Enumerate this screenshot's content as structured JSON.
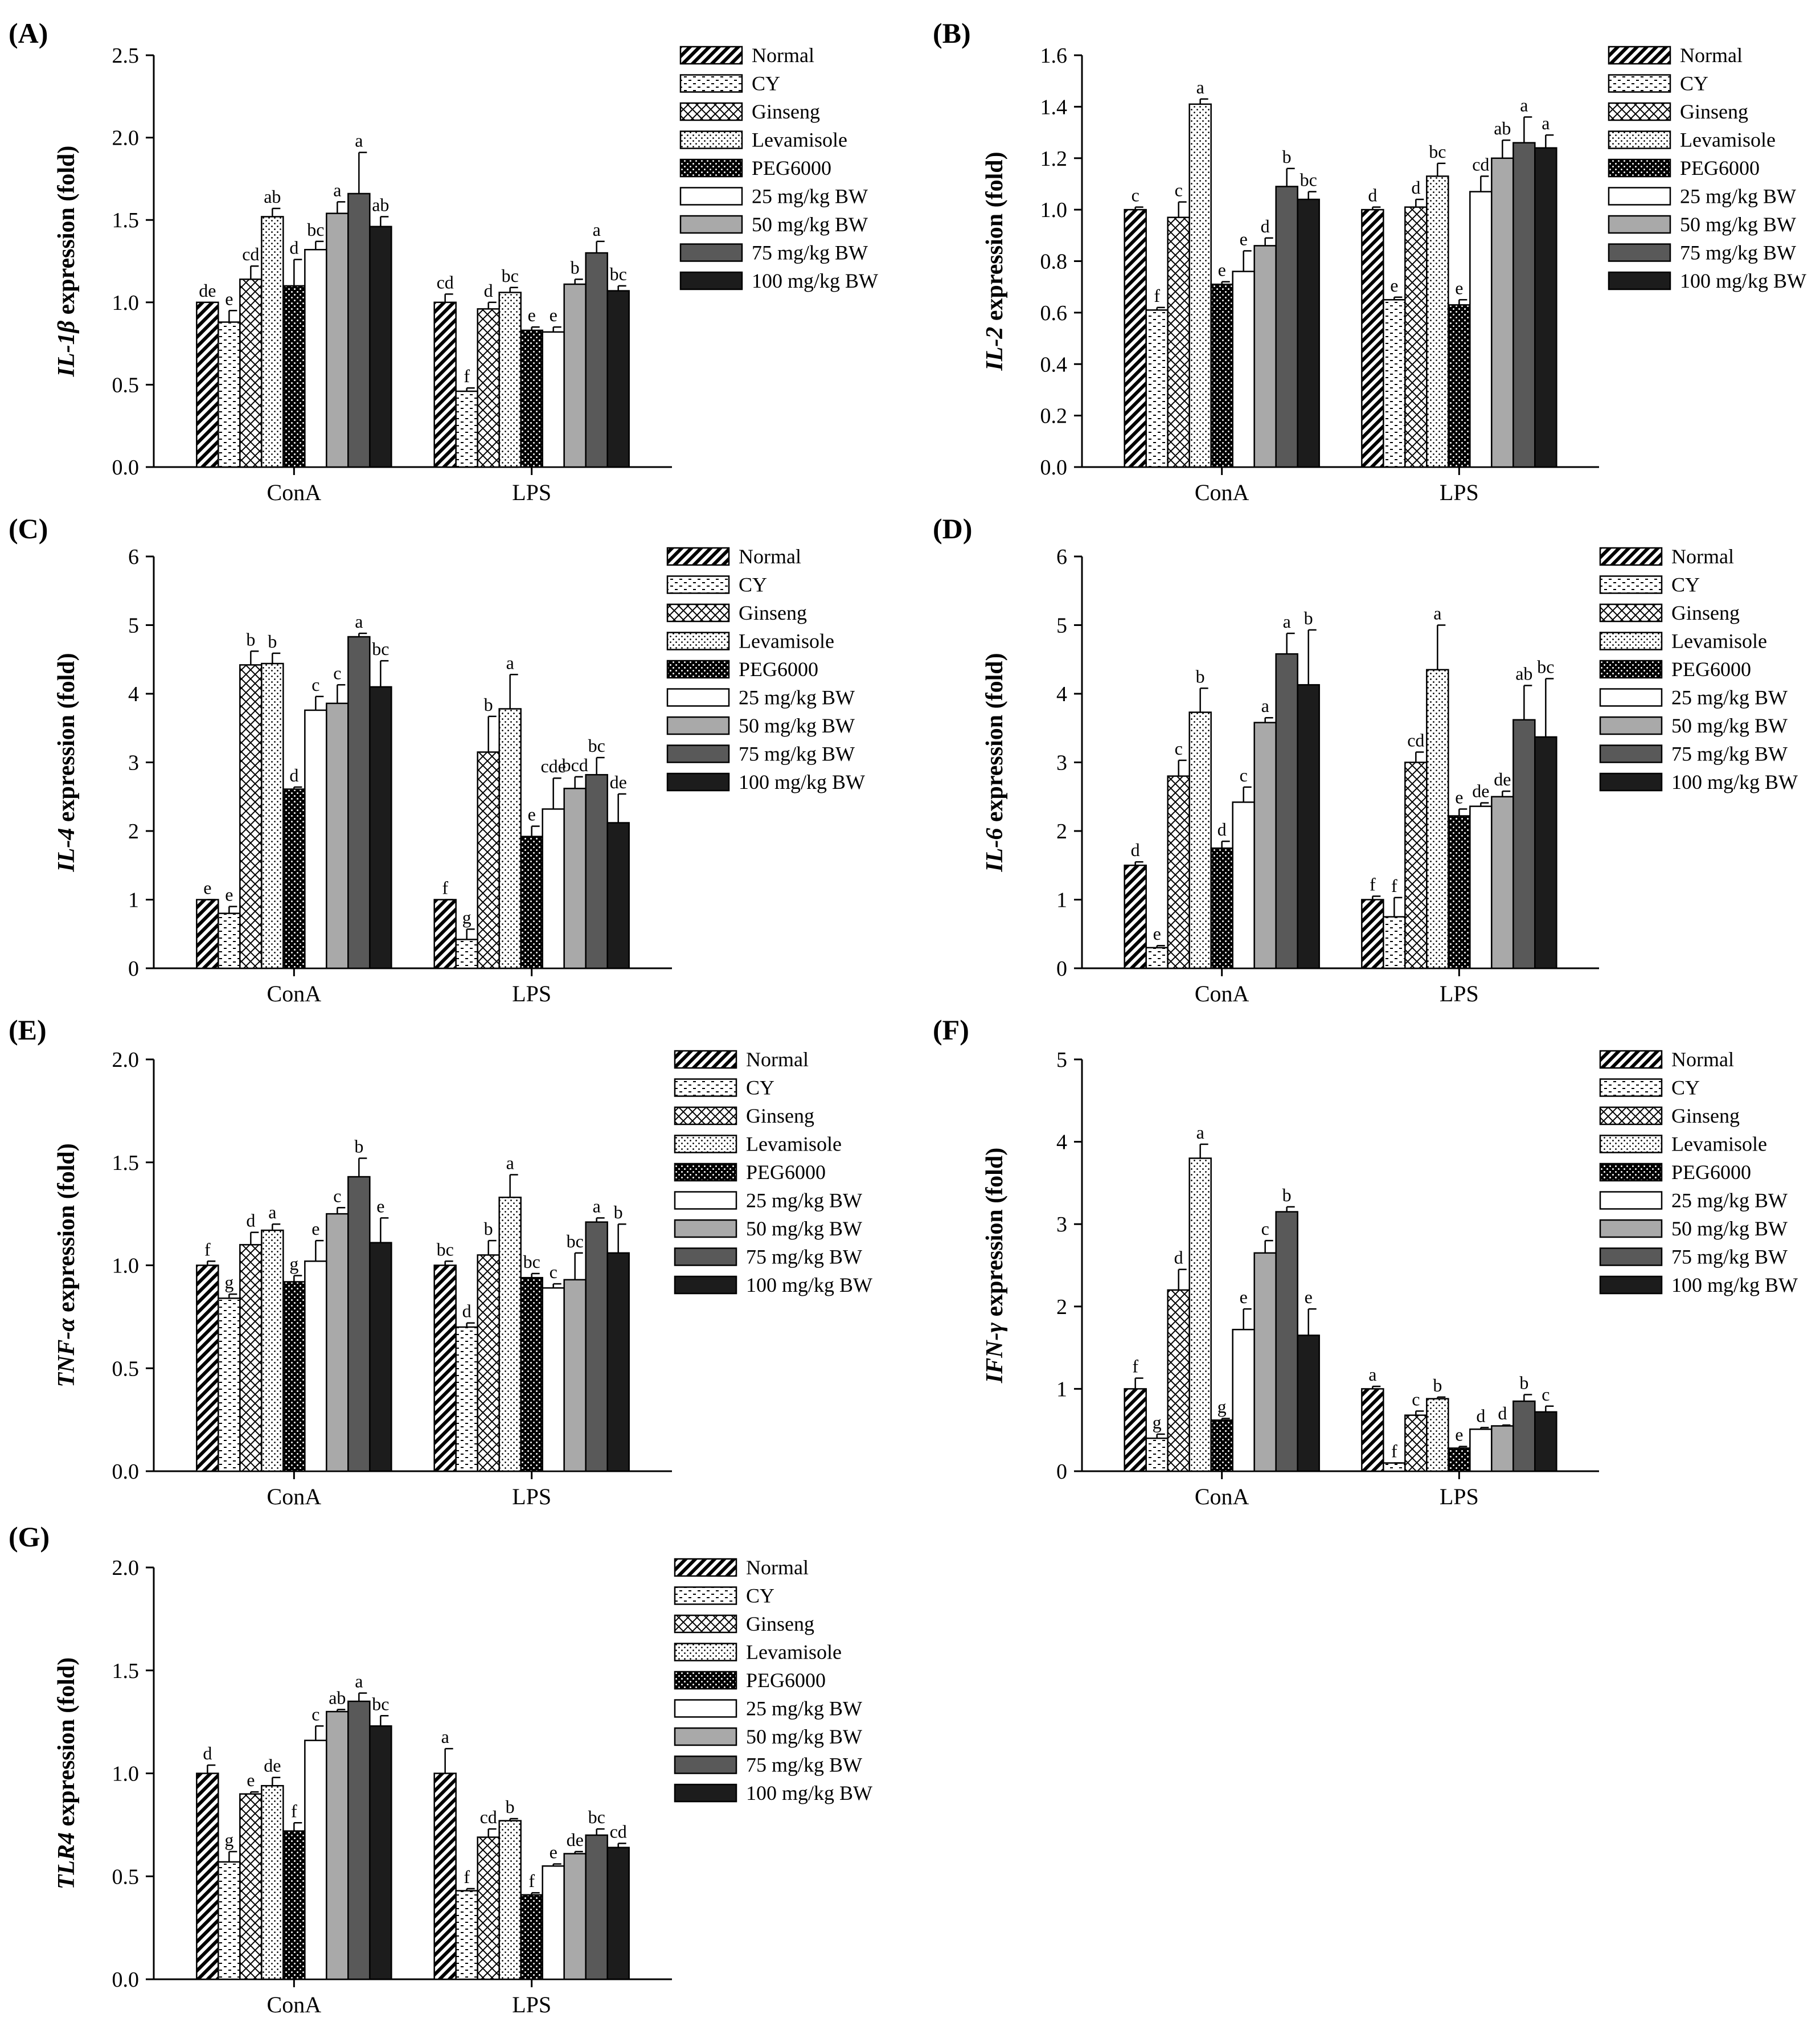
{
  "legend": [
    "Normal",
    "CY",
    "Ginseng",
    "Levamisole",
    "PEG6000",
    "25 mg/kg BW",
    "50 mg/kg BW",
    "75 mg/kg BW",
    "100 mg/kg BW"
  ],
  "chart_data": [
    {
      "panel": "(A)",
      "type": "bar",
      "ylabel_gene": "IL-1β",
      "ylabel_rest": " expression (fold)",
      "ylim": [
        0,
        2.5
      ],
      "yticks": [
        "0.0",
        "0.5",
        "1.0",
        "1.5",
        "2.0",
        "2.5"
      ],
      "categories": [
        "ConA",
        "LPS"
      ],
      "series": [
        {
          "name": "Normal",
          "values": [
            1.0,
            1.0
          ],
          "errors": [
            0.0,
            0.05
          ],
          "letters": [
            "de",
            "cd"
          ]
        },
        {
          "name": "CY",
          "values": [
            0.88,
            0.46
          ],
          "errors": [
            0.07,
            0.02
          ],
          "letters": [
            "e",
            "f"
          ]
        },
        {
          "name": "Ginseng",
          "values": [
            1.14,
            0.96
          ],
          "errors": [
            0.08,
            0.04
          ],
          "letters": [
            "cd",
            "d"
          ]
        },
        {
          "name": "Levamisole",
          "values": [
            1.52,
            1.06
          ],
          "errors": [
            0.05,
            0.03
          ],
          "letters": [
            "ab",
            "bc"
          ]
        },
        {
          "name": "PEG6000",
          "values": [
            1.1,
            0.83
          ],
          "errors": [
            0.16,
            0.02
          ],
          "letters": [
            "d",
            "e"
          ]
        },
        {
          "name": "25 mg/kg BW",
          "values": [
            1.32,
            0.82
          ],
          "errors": [
            0.05,
            0.03
          ],
          "letters": [
            "bc",
            "e"
          ]
        },
        {
          "name": "50 mg/kg BW",
          "values": [
            1.54,
            1.11
          ],
          "errors": [
            0.07,
            0.03
          ],
          "letters": [
            "a",
            "b"
          ]
        },
        {
          "name": "75 mg/kg BW",
          "values": [
            1.66,
            1.3
          ],
          "errors": [
            0.25,
            0.07
          ],
          "letters": [
            "a",
            "a"
          ]
        },
        {
          "name": "100 mg/kg BW",
          "values": [
            1.46,
            1.07
          ],
          "errors": [
            0.06,
            0.03
          ],
          "letters": [
            "ab",
            "bc"
          ]
        }
      ]
    },
    {
      "panel": "(B)",
      "type": "bar",
      "ylabel_gene": "IL-2",
      "ylabel_rest": " expression (fold)",
      "ylim": [
        0,
        1.6
      ],
      "yticks": [
        "0.0",
        "0.2",
        "0.4",
        "0.6",
        "0.8",
        "1.0",
        "1.2",
        "1.4",
        "1.6"
      ],
      "categories": [
        "ConA",
        "LPS"
      ],
      "series": [
        {
          "name": "Normal",
          "values": [
            1.0,
            1.0
          ],
          "errors": [
            0.01,
            0.01
          ],
          "letters": [
            "c",
            "d"
          ]
        },
        {
          "name": "CY",
          "values": [
            0.61,
            0.65
          ],
          "errors": [
            0.01,
            0.01
          ],
          "letters": [
            "f",
            "e"
          ]
        },
        {
          "name": "Ginseng",
          "values": [
            0.97,
            1.01
          ],
          "errors": [
            0.06,
            0.03
          ],
          "letters": [
            "c",
            "d"
          ]
        },
        {
          "name": "Levamisole",
          "values": [
            1.41,
            1.13
          ],
          "errors": [
            0.02,
            0.05
          ],
          "letters": [
            "a",
            "bc"
          ]
        },
        {
          "name": "PEG6000",
          "values": [
            0.71,
            0.63
          ],
          "errors": [
            0.01,
            0.02
          ],
          "letters": [
            "e",
            "e"
          ]
        },
        {
          "name": "25 mg/kg BW",
          "values": [
            0.76,
            1.07
          ],
          "errors": [
            0.08,
            0.06
          ],
          "letters": [
            "e",
            "cd"
          ]
        },
        {
          "name": "50 mg/kg BW",
          "values": [
            0.86,
            1.2
          ],
          "errors": [
            0.03,
            0.07
          ],
          "letters": [
            "d",
            "ab"
          ]
        },
        {
          "name": "75 mg/kg BW",
          "values": [
            1.09,
            1.26
          ],
          "errors": [
            0.07,
            0.1
          ],
          "letters": [
            "b",
            "a"
          ]
        },
        {
          "name": "100 mg/kg BW",
          "values": [
            1.04,
            1.24
          ],
          "errors": [
            0.03,
            0.05
          ],
          "letters": [
            "bc",
            "a"
          ]
        }
      ]
    },
    {
      "panel": "(C)",
      "type": "bar",
      "ylabel_gene": "IL-4",
      "ylabel_rest": " expression (fold)",
      "ylim": [
        0,
        6
      ],
      "yticks": [
        "0",
        "1",
        "2",
        "3",
        "4",
        "5",
        "6"
      ],
      "categories": [
        "ConA",
        "LPS"
      ],
      "series": [
        {
          "name": "Normal",
          "values": [
            1.0,
            1.0
          ],
          "errors": [
            0.0,
            0.0
          ],
          "letters": [
            "e",
            "f"
          ]
        },
        {
          "name": "CY",
          "values": [
            0.8,
            0.42
          ],
          "errors": [
            0.1,
            0.15
          ],
          "letters": [
            "e",
            "g"
          ]
        },
        {
          "name": "Ginseng",
          "values": [
            4.42,
            3.15
          ],
          "errors": [
            0.2,
            0.52
          ],
          "letters": [
            "b",
            "b"
          ]
        },
        {
          "name": "Levamisole",
          "values": [
            4.44,
            3.78
          ],
          "errors": [
            0.15,
            0.5
          ],
          "letters": [
            "b",
            "a"
          ]
        },
        {
          "name": "PEG6000",
          "values": [
            2.61,
            1.92
          ],
          "errors": [
            0.03,
            0.15
          ],
          "letters": [
            "d",
            "e"
          ]
        },
        {
          "name": "25 mg/kg BW",
          "values": [
            3.76,
            2.32
          ],
          "errors": [
            0.2,
            0.45
          ],
          "letters": [
            "c",
            "cde"
          ]
        },
        {
          "name": "50 mg/kg BW",
          "values": [
            3.86,
            2.62
          ],
          "errors": [
            0.27,
            0.17
          ],
          "letters": [
            "c",
            "bcd"
          ]
        },
        {
          "name": "75 mg/kg BW",
          "values": [
            4.83,
            2.82
          ],
          "errors": [
            0.05,
            0.25
          ],
          "letters": [
            "a",
            "bc"
          ]
        },
        {
          "name": "100 mg/kg BW",
          "values": [
            4.1,
            2.12
          ],
          "errors": [
            0.38,
            0.42
          ],
          "letters": [
            "bc",
            "de"
          ]
        }
      ]
    },
    {
      "panel": "(D)",
      "type": "bar",
      "ylabel_gene": "IL-6",
      "ylabel_rest": " expression (fold)",
      "ylim": [
        0,
        6
      ],
      "yticks": [
        "0",
        "1",
        "2",
        "3",
        "4",
        "5",
        "6"
      ],
      "categories": [
        "ConA",
        "LPS"
      ],
      "series": [
        {
          "name": "Normal",
          "values": [
            1.5,
            1.0
          ],
          "errors": [
            0.05,
            0.05
          ],
          "letters": [
            "d",
            "f"
          ]
        },
        {
          "name": "CY",
          "values": [
            0.3,
            0.75
          ],
          "errors": [
            0.03,
            0.28
          ],
          "letters": [
            "e",
            "f"
          ]
        },
        {
          "name": "Ginseng",
          "values": [
            2.8,
            3.0
          ],
          "errors": [
            0.23,
            0.15
          ],
          "letters": [
            "c",
            "cd"
          ]
        },
        {
          "name": "Levamisole",
          "values": [
            3.73,
            4.35
          ],
          "errors": [
            0.35,
            0.65
          ],
          "letters": [
            "b",
            "a"
          ]
        },
        {
          "name": "PEG6000",
          "values": [
            1.75,
            2.22
          ],
          "errors": [
            0.1,
            0.1
          ],
          "letters": [
            "d",
            "e"
          ]
        },
        {
          "name": "25 mg/kg BW",
          "values": [
            2.42,
            2.36
          ],
          "errors": [
            0.22,
            0.05
          ],
          "letters": [
            "c",
            "de"
          ]
        },
        {
          "name": "50 mg/kg BW",
          "values": [
            3.58,
            2.5
          ],
          "errors": [
            0.07,
            0.08
          ],
          "letters": [
            "a",
            "de"
          ]
        },
        {
          "name": "75 mg/kg BW",
          "values": [
            4.58,
            3.62
          ],
          "errors": [
            0.3,
            0.5
          ],
          "letters": [
            "a",
            "ab"
          ]
        },
        {
          "name": "100 mg/kg BW",
          "values": [
            4.13,
            3.37
          ],
          "errors": [
            0.8,
            0.85
          ],
          "letters": [
            "b",
            "bc"
          ]
        }
      ]
    },
    {
      "panel": "(E)",
      "type": "bar",
      "ylabel_gene": "TNF-α",
      "ylabel_rest": " expression (fold)",
      "ylim": [
        0,
        2.0
      ],
      "yticks": [
        "0.0",
        "0.5",
        "1.0",
        "1.5",
        "2.0"
      ],
      "categories": [
        "ConA",
        "LPS"
      ],
      "series": [
        {
          "name": "Normal",
          "values": [
            1.0,
            1.0
          ],
          "errors": [
            0.02,
            0.02
          ],
          "letters": [
            "f",
            "bc"
          ]
        },
        {
          "name": "CY",
          "values": [
            0.84,
            0.7
          ],
          "errors": [
            0.02,
            0.02
          ],
          "letters": [
            "g",
            "d"
          ]
        },
        {
          "name": "Ginseng",
          "values": [
            1.1,
            1.05
          ],
          "errors": [
            0.06,
            0.07
          ],
          "letters": [
            "d",
            "b"
          ]
        },
        {
          "name": "Levamisole",
          "values": [
            1.17,
            1.33
          ],
          "errors": [
            0.03,
            0.11
          ],
          "letters": [
            "a",
            "a"
          ]
        },
        {
          "name": "PEG6000",
          "values": [
            0.92,
            0.94
          ],
          "errors": [
            0.03,
            0.02
          ],
          "letters": [
            "g",
            "bc"
          ]
        },
        {
          "name": "25 mg/kg BW",
          "values": [
            1.02,
            0.89
          ],
          "errors": [
            0.1,
            0.02
          ],
          "letters": [
            "e",
            "c"
          ]
        },
        {
          "name": "50 mg/kg BW",
          "values": [
            1.25,
            0.93
          ],
          "errors": [
            0.03,
            0.13
          ],
          "letters": [
            "c",
            "bc"
          ]
        },
        {
          "name": "75 mg/kg BW",
          "values": [
            1.43,
            1.21
          ],
          "errors": [
            0.09,
            0.02
          ],
          "letters": [
            "b",
            "a"
          ]
        },
        {
          "name": "100 mg/kg BW",
          "values": [
            1.11,
            1.06
          ],
          "errors": [
            0.12,
            0.14
          ],
          "letters": [
            "e",
            "b"
          ]
        }
      ]
    },
    {
      "panel": "(F)",
      "type": "bar",
      "ylabel_gene": "IFN-γ",
      "ylabel_rest": " expression (fold)",
      "ylim": [
        0,
        5
      ],
      "yticks": [
        "0",
        "1",
        "2",
        "3",
        "4",
        "5"
      ],
      "categories": [
        "ConA",
        "LPS"
      ],
      "series": [
        {
          "name": "Normal",
          "values": [
            1.0,
            1.0
          ],
          "errors": [
            0.13,
            0.03
          ],
          "letters": [
            "f",
            "a"
          ]
        },
        {
          "name": "CY",
          "values": [
            0.4,
            0.1
          ],
          "errors": [
            0.05,
            0.0
          ],
          "letters": [
            "g",
            "f"
          ]
        },
        {
          "name": "Ginseng",
          "values": [
            2.2,
            0.68
          ],
          "errors": [
            0.25,
            0.05
          ],
          "letters": [
            "d",
            "c"
          ]
        },
        {
          "name": "Levamisole",
          "values": [
            3.8,
            0.88
          ],
          "errors": [
            0.17,
            0.02
          ],
          "letters": [
            "a",
            "b"
          ]
        },
        {
          "name": "PEG6000",
          "values": [
            0.62,
            0.28
          ],
          "errors": [
            0.02,
            0.02
          ],
          "letters": [
            "g",
            "e"
          ]
        },
        {
          "name": "25 mg/kg BW",
          "values": [
            1.72,
            0.51
          ],
          "errors": [
            0.25,
            0.02
          ],
          "letters": [
            "e",
            "d"
          ]
        },
        {
          "name": "50 mg/kg BW",
          "values": [
            2.65,
            0.55
          ],
          "errors": [
            0.15,
            0.01
          ],
          "letters": [
            "c",
            "d"
          ]
        },
        {
          "name": "75 mg/kg BW",
          "values": [
            3.15,
            0.85
          ],
          "errors": [
            0.06,
            0.08
          ],
          "letters": [
            "b",
            "b"
          ]
        },
        {
          "name": "100 mg/kg BW",
          "values": [
            1.65,
            0.72
          ],
          "errors": [
            0.32,
            0.07
          ],
          "letters": [
            "e",
            "c"
          ]
        }
      ]
    },
    {
      "panel": "(G)",
      "type": "bar",
      "ylabel_gene": "TLR4",
      "ylabel_rest": " expression (fold)",
      "ylim": [
        0,
        2.0
      ],
      "yticks": [
        "0.0",
        "0.5",
        "1.0",
        "1.5",
        "2.0"
      ],
      "categories": [
        "ConA",
        "LPS"
      ],
      "series": [
        {
          "name": "Normal",
          "values": [
            1.0,
            1.0
          ],
          "errors": [
            0.04,
            0.12
          ],
          "letters": [
            "d",
            "a"
          ]
        },
        {
          "name": "CY",
          "values": [
            0.57,
            0.43
          ],
          "errors": [
            0.05,
            0.01
          ],
          "letters": [
            "g",
            "f"
          ]
        },
        {
          "name": "Ginseng",
          "values": [
            0.9,
            0.69
          ],
          "errors": [
            0.01,
            0.04
          ],
          "letters": [
            "e",
            "cd"
          ]
        },
        {
          "name": "Levamisole",
          "values": [
            0.94,
            0.77
          ],
          "errors": [
            0.04,
            0.01
          ],
          "letters": [
            "de",
            "b"
          ]
        },
        {
          "name": "PEG6000",
          "values": [
            0.72,
            0.41
          ],
          "errors": [
            0.04,
            0.01
          ],
          "letters": [
            "f",
            "f"
          ]
        },
        {
          "name": "25 mg/kg BW",
          "values": [
            1.16,
            0.55
          ],
          "errors": [
            0.07,
            0.01
          ],
          "letters": [
            "c",
            "e"
          ]
        },
        {
          "name": "50 mg/kg BW",
          "values": [
            1.3,
            0.61
          ],
          "errors": [
            0.01,
            0.01
          ],
          "letters": [
            "ab",
            "de"
          ]
        },
        {
          "name": "75 mg/kg BW",
          "values": [
            1.35,
            0.7
          ],
          "errors": [
            0.04,
            0.03
          ],
          "letters": [
            "a",
            "bc"
          ]
        },
        {
          "name": "100 mg/kg BW",
          "values": [
            1.23,
            0.64
          ],
          "errors": [
            0.05,
            0.02
          ],
          "letters": [
            "bc",
            "cd"
          ]
        }
      ]
    }
  ]
}
